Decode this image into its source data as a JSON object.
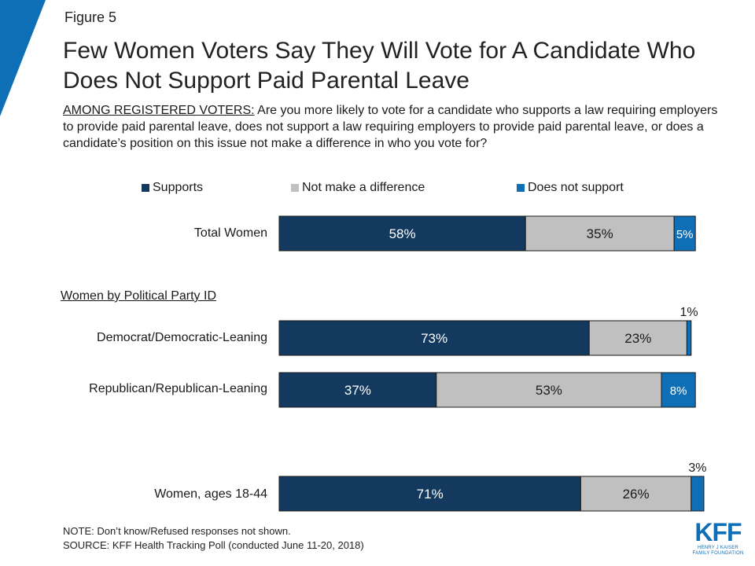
{
  "figure_label": "Figure 5",
  "title": "Few Women Voters Say They Will Vote for A Candidate Who Does Not Support Paid Parental Leave",
  "subtitle": {
    "prefix": "AMONG REGISTERED VOTERS:",
    "text": " Are you more likely to vote for a candidate who supports a law requiring employers to provide paid parental leave, does not support a law requiring employers to provide paid parental leave, or does a candidate’s position on this issue not make a difference in who you vote for?"
  },
  "group_heading": "Women by Political Party ID",
  "note": "NOTE: Don’t know/Refused responses not shown.",
  "source": "SOURCE: KFF Health Tracking Poll (conducted June 11-20, 2018)",
  "logo": {
    "main": "KFF",
    "line1": "HENRY J KAISER",
    "line2": "FAMILY FOUNDATION"
  },
  "colors": {
    "supports": "#133a5e",
    "no_difference": "#c0c0c0",
    "does_not_support": "#0f6fb6",
    "accent": "#0f6fb6"
  },
  "chart_data": {
    "type": "bar",
    "orientation": "horizontal",
    "stacked": true,
    "categories": [
      "Total Women",
      "Democrat/Democratic-Leaning",
      "Republican/Republican-Leaning",
      "Women, ages 18-44"
    ],
    "series": [
      {
        "name": "Supports",
        "values": [
          58,
          73,
          37,
          71
        ],
        "labels": [
          "58%",
          "73%",
          "37%",
          "71%"
        ]
      },
      {
        "name": "Not make a difference",
        "values": [
          35,
          23,
          53,
          26
        ],
        "labels": [
          "35%",
          "23%",
          "53%",
          "26%"
        ]
      },
      {
        "name": "Does not support",
        "values": [
          5,
          1,
          8,
          3
        ],
        "labels": [
          "5%",
          "1%",
          "8%",
          "3%"
        ]
      }
    ],
    "legend_position": "top",
    "grid": false,
    "xlim": [
      0,
      100
    ],
    "unit": "%"
  }
}
